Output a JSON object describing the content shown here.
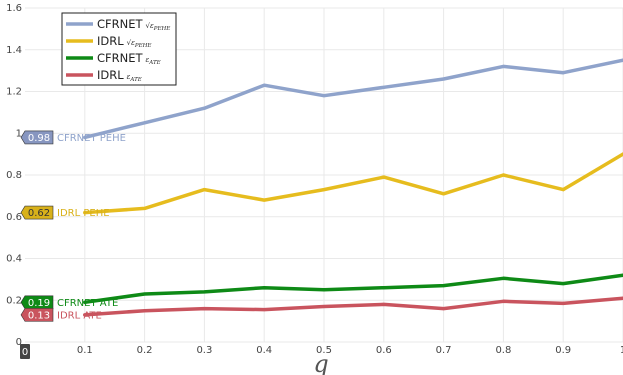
{
  "chart_data": {
    "type": "line",
    "title": "",
    "xlabel": "q",
    "ylabel": "",
    "x": [
      0.1,
      0.2,
      0.3,
      0.4,
      0.5,
      0.6,
      0.7,
      0.8,
      0.9,
      1.0
    ],
    "xlim": [
      0,
      1
    ],
    "ylim": [
      0,
      1.6
    ],
    "xticks": [
      "0.1",
      "0.2",
      "0.3",
      "0.4",
      "0.5",
      "0.6",
      "0.7",
      "0.8",
      "0.9",
      "1"
    ],
    "x_zero_label": "0",
    "yticks": [
      "0",
      "0.2",
      "0.4",
      "0.6",
      "0.8",
      "1",
      "1.2",
      "1.4",
      "1.6"
    ],
    "grid": true,
    "legend_position": "top-left",
    "series": [
      {
        "key": "cfrnet-pehe",
        "legend_main": "CFRNET",
        "legend_sub": "√ε",
        "legend_sub2": "PEHE",
        "color": "#8FA3CB",
        "values": [
          0.98,
          1.05,
          1.12,
          1.23,
          1.18,
          1.22,
          1.26,
          1.32,
          1.29,
          1.35
        ]
      },
      {
        "key": "idrl-pehe",
        "legend_main": "IDRL",
        "legend_sub": "√ε",
        "legend_sub2": "PEHE",
        "color": "#E6BC1E",
        "values": [
          0.62,
          0.64,
          0.73,
          0.68,
          0.73,
          0.79,
          0.71,
          0.8,
          0.73,
          0.9
        ]
      },
      {
        "key": "cfrnet-ate",
        "legend_main": "CFRNET",
        "legend_sub": "ε",
        "legend_sub2": "ATE",
        "color": "#0E8A16",
        "values": [
          0.19,
          0.23,
          0.24,
          0.26,
          0.25,
          0.26,
          0.27,
          0.305,
          0.28,
          0.32
        ]
      },
      {
        "key": "idrl-ate",
        "legend_main": "IDRL",
        "legend_sub": "ε",
        "legend_sub2": "ATE",
        "color": "#C9545E",
        "values": [
          0.13,
          0.15,
          0.16,
          0.155,
          0.17,
          0.18,
          0.16,
          0.195,
          0.185,
          0.21
        ]
      }
    ],
    "hover_labels": [
      {
        "value": "0.98",
        "text": "CFRNET PEHE",
        "color": "#8FA3CB",
        "box": "#8796C0",
        "text_color": "#8FA3CB",
        "y": 0.98
      },
      {
        "value": "0.62",
        "text": "IDRL PEHE",
        "color": "#E6BC1E",
        "box": "#D8B11A",
        "text_color": "#D8B11A",
        "y": 0.62
      },
      {
        "value": "0.19",
        "text": "CFRNET ATE",
        "color": "#0E8A16",
        "box": "#0E8A16",
        "text_color": "#0E8A16",
        "y": 0.19
      },
      {
        "value": "0.13",
        "text": "IDRL ATE",
        "color": "#C9545E",
        "box": "#C9545E",
        "text_color": "#C9545E",
        "y": 0.13
      }
    ]
  }
}
